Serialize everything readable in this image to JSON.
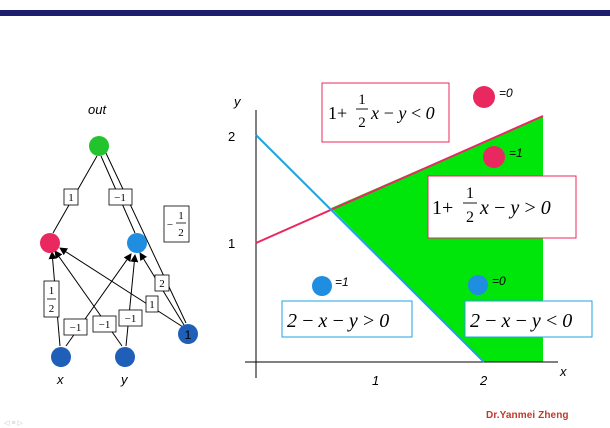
{
  "network": {
    "output_label": "out",
    "input_x_label": "x",
    "input_y_label": "y",
    "bias_node_label": "1",
    "weights": {
      "h1_to_out": "1",
      "h2_to_out": "−1",
      "bias_to_out_sign": "−",
      "bias_to_out_num": "1",
      "bias_to_out_den": "2",
      "h1_from_bias_num": "1",
      "h1_from_bias_den": "2",
      "h2_from_bias": "2",
      "h1_from_y": "1",
      "h1_from_x": "−1",
      "h2_from_x": "−1",
      "h2_from_y": "−1"
    },
    "colors": {
      "output": "#22c32c",
      "hidden_left": "#e8285f",
      "hidden_right": "#1f8de0",
      "inputs": "#1f5fb8",
      "bias": "#1f5fb8"
    }
  },
  "plot": {
    "x_axis_label": "x",
    "y_axis_label": "y",
    "x_ticks": [
      "1",
      "2"
    ],
    "y_ticks": [
      "1",
      "2"
    ],
    "region_color": "#00e60a",
    "line_pink_color": "#e8285f",
    "line_blue_color": "#1fa3e0",
    "markers": [
      {
        "name": "top-right",
        "color": "#e8285f",
        "label": "=0"
      },
      {
        "name": "region",
        "color": "#e8285f",
        "label": "=1"
      },
      {
        "name": "left",
        "color": "#1f8de0",
        "label": "=1"
      },
      {
        "name": "bottom-right",
        "color": "#1f8de0",
        "label": "=0"
      }
    ],
    "ineq_pink_lt": {
      "lead": "1+",
      "num": "1",
      "den": "2",
      "tail": "x − y < 0"
    },
    "ineq_pink_gt": {
      "lead": "1+",
      "num": "1",
      "den": "2",
      "tail": "x − y > 0"
    },
    "ineq_blue_gt": {
      "text": "2 − x − y > 0"
    },
    "ineq_blue_lt": {
      "text": "2 − x − y < 0"
    }
  },
  "footer": {
    "author": "Dr.Yanmei Zheng",
    "nav": "◁ ≡ ▷"
  }
}
